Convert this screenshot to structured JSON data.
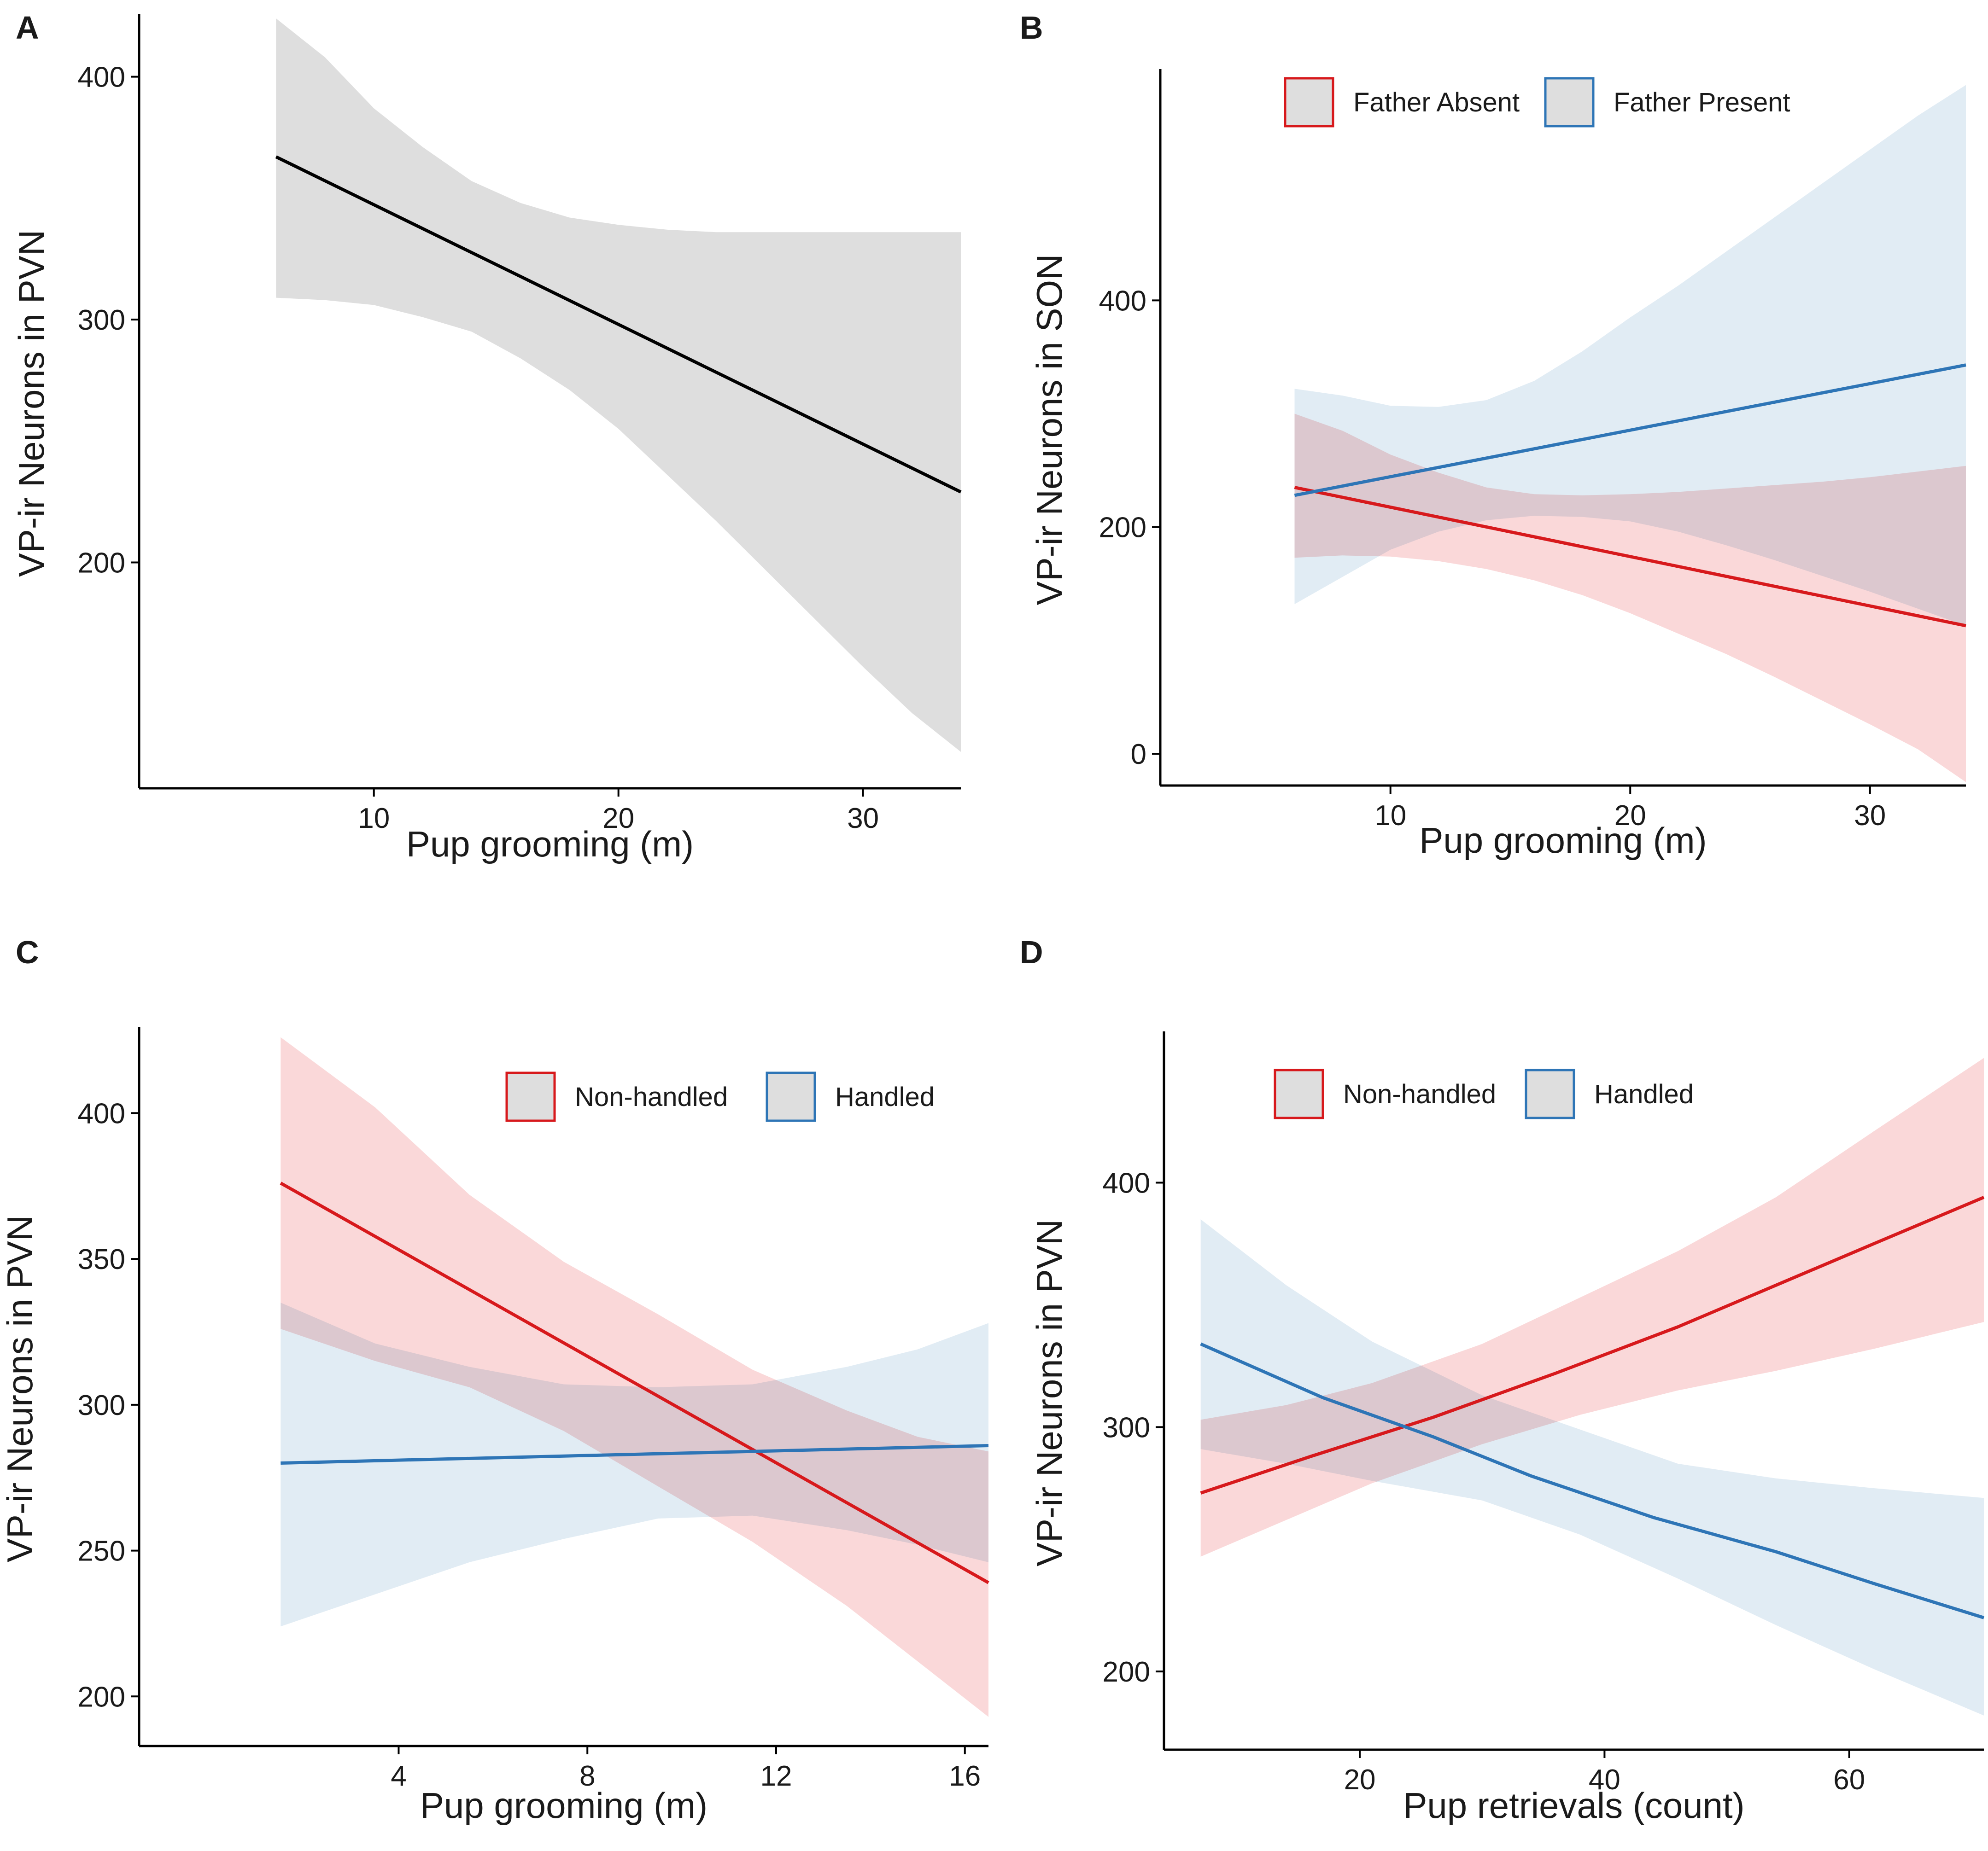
{
  "chart_data": [
    {
      "panel": "A",
      "type": "line",
      "xlabel": "Pup grooming (m)",
      "ylabel": "VP-ir Neurons in PVN",
      "xlim": [
        0.4,
        34
      ],
      "ylim": [
        107,
        424
      ],
      "xticks": [
        10,
        20,
        30
      ],
      "yticks": [
        200,
        300,
        400
      ],
      "grid": false,
      "legend": null,
      "series": [
        {
          "name": "",
          "color": "#000000",
          "fill": "#dedede",
          "line": [
            [
              6,
              367
            ],
            [
              34,
              229
            ]
          ],
          "ci_upper": [
            [
              6,
              424
            ],
            [
              8,
              408
            ],
            [
              10,
              387
            ],
            [
              12,
              371
            ],
            [
              14,
              357
            ],
            [
              16,
              348
            ],
            [
              18,
              342
            ],
            [
              20,
              339
            ],
            [
              22,
              337
            ],
            [
              24,
              336
            ],
            [
              26,
              336
            ],
            [
              28,
              336
            ],
            [
              30,
              336
            ],
            [
              32,
              336
            ],
            [
              34,
              336
            ]
          ],
          "ci_lower": [
            [
              6,
              309
            ],
            [
              8,
              308
            ],
            [
              10,
              306
            ],
            [
              12,
              301
            ],
            [
              14,
              295
            ],
            [
              16,
              284
            ],
            [
              18,
              271
            ],
            [
              20,
              255
            ],
            [
              22,
              236
            ],
            [
              24,
              217
            ],
            [
              26,
              197
            ],
            [
              28,
              177
            ],
            [
              30,
              157
            ],
            [
              32,
              138
            ],
            [
              34,
              122
            ]
          ]
        }
      ]
    },
    {
      "panel": "B",
      "type": "line",
      "xlabel": "Pup grooming (m)",
      "ylabel": "VP-ir Neurons in SON",
      "xlim": [
        0.4,
        34
      ],
      "ylim": [
        -28,
        600
      ],
      "xticks": [
        10,
        20,
        30
      ],
      "yticks": [
        0,
        200,
        400
      ],
      "grid": false,
      "legend": "top",
      "series": [
        {
          "name": "Father Absent",
          "color": "#d7191c",
          "fill": "#f8c9cb",
          "line": [
            [
              6,
              235
            ],
            [
              34,
              113
            ]
          ],
          "ci_upper": [
            [
              6,
              300
            ],
            [
              8,
              285
            ],
            [
              10,
              264
            ],
            [
              12,
              248
            ],
            [
              14,
              235
            ],
            [
              16,
              229
            ],
            [
              18,
              228
            ],
            [
              20,
              229
            ],
            [
              22,
              231
            ],
            [
              24,
              234
            ],
            [
              26,
              237
            ],
            [
              28,
              240
            ],
            [
              30,
              244
            ],
            [
              32,
              249
            ],
            [
              34,
              254
            ]
          ],
          "ci_lower": [
            [
              6,
              173
            ],
            [
              8,
              175
            ],
            [
              10,
              174
            ],
            [
              12,
              170
            ],
            [
              14,
              163
            ],
            [
              16,
              153
            ],
            [
              18,
              140
            ],
            [
              20,
              124
            ],
            [
              22,
              106
            ],
            [
              24,
              88
            ],
            [
              26,
              68
            ],
            [
              28,
              47
            ],
            [
              30,
              26
            ],
            [
              32,
              4
            ],
            [
              34,
              -25
            ]
          ]
        },
        {
          "name": "Father Present",
          "color": "#2e75b6",
          "fill": "#d6e4f0",
          "line": [
            [
              6,
              228
            ],
            [
              34,
              343
            ]
          ],
          "ci_upper": [
            [
              6,
              322
            ],
            [
              8,
              316
            ],
            [
              10,
              307
            ],
            [
              12,
              306
            ],
            [
              14,
              312
            ],
            [
              16,
              329
            ],
            [
              18,
              355
            ],
            [
              20,
              385
            ],
            [
              22,
              413
            ],
            [
              24,
              443
            ],
            [
              26,
              473
            ],
            [
              28,
              503
            ],
            [
              30,
              533
            ],
            [
              32,
              563
            ],
            [
              34,
              590
            ]
          ],
          "ci_lower": [
            [
              6,
              132
            ],
            [
              8,
              156
            ],
            [
              10,
              180
            ],
            [
              12,
              196
            ],
            [
              14,
              206
            ],
            [
              16,
              210
            ],
            [
              18,
              209
            ],
            [
              20,
              205
            ],
            [
              22,
              196
            ],
            [
              24,
              184
            ],
            [
              26,
              171
            ],
            [
              28,
              157
            ],
            [
              30,
              143
            ],
            [
              32,
              128
            ],
            [
              34,
              113
            ]
          ]
        }
      ]
    },
    {
      "panel": "C",
      "type": "line",
      "xlabel": "Pup grooming (m)",
      "ylabel": "VP-ir Neurons in PVN",
      "xlim": [
        -1.5,
        16.5
      ],
      "ylim": [
        183,
        428
      ],
      "xticks": [
        4,
        8,
        12,
        16
      ],
      "yticks": [
        200,
        250,
        300,
        350,
        400
      ],
      "grid": false,
      "legend": "top-right",
      "series": [
        {
          "name": "Non-handled",
          "color": "#d7191c",
          "fill": "#f8c9cb",
          "line": [
            [
              1.5,
              376
            ],
            [
              16.5,
              239
            ]
          ],
          "ci_upper": [
            [
              1.5,
              426
            ],
            [
              3.5,
              402
            ],
            [
              5.5,
              372
            ],
            [
              7.5,
              349
            ],
            [
              9.5,
              331
            ],
            [
              11.5,
              312
            ],
            [
              13.5,
              298
            ],
            [
              15,
              289
            ],
            [
              16.5,
              284
            ]
          ],
          "ci_lower": [
            [
              1.5,
              326
            ],
            [
              3.5,
              315
            ],
            [
              5.5,
              306
            ],
            [
              7.5,
              291
            ],
            [
              9.5,
              272
            ],
            [
              11.5,
              253
            ],
            [
              13.5,
              231
            ],
            [
              15,
              212
            ],
            [
              16.5,
              193
            ]
          ]
        },
        {
          "name": "Handled",
          "color": "#2e75b6",
          "fill": "#d6e4f0",
          "line": [
            [
              1.5,
              280
            ],
            [
              16.5,
              286
            ]
          ],
          "ci_upper": [
            [
              1.5,
              335
            ],
            [
              3.5,
              321
            ],
            [
              5.5,
              313
            ],
            [
              7.5,
              307
            ],
            [
              9.5,
              306
            ],
            [
              11.5,
              307
            ],
            [
              13.5,
              313
            ],
            [
              15,
              319
            ],
            [
              16.5,
              328
            ]
          ],
          "ci_lower": [
            [
              1.5,
              224
            ],
            [
              3.5,
              235
            ],
            [
              5.5,
              246
            ],
            [
              7.5,
              254
            ],
            [
              9.5,
              261
            ],
            [
              11.5,
              262
            ],
            [
              13.5,
              257
            ],
            [
              15,
              252
            ],
            [
              16.5,
              246
            ]
          ]
        }
      ]
    },
    {
      "panel": "D",
      "type": "line",
      "xlabel": "Pup retrievals (count)",
      "ylabel": "VP-ir Neurons in PVN",
      "xlim": [
        4,
        71
      ],
      "ylim": [
        168,
        460
      ],
      "xticks": [
        20,
        40,
        60
      ],
      "yticks": [
        200,
        300,
        400
      ],
      "grid": false,
      "legend": "top",
      "series": [
        {
          "name": "Non-handled",
          "color": "#d7191c",
          "fill": "#f8c9cb",
          "line": [
            [
              7,
              273
            ],
            [
              16,
              288
            ],
            [
              26,
              304
            ],
            [
              36,
              322
            ],
            [
              46,
              341
            ],
            [
              54,
              358
            ],
            [
              62,
              375
            ],
            [
              71,
              394
            ]
          ],
          "ci_upper": [
            [
              7,
              303
            ],
            [
              14,
              309
            ],
            [
              21,
              318
            ],
            [
              30,
              334
            ],
            [
              38,
              353
            ],
            [
              46,
              372
            ],
            [
              54,
              394
            ],
            [
              62,
              421
            ],
            [
              71,
              451
            ]
          ],
          "ci_lower": [
            [
              7,
              247
            ],
            [
              14,
              262
            ],
            [
              21,
              277
            ],
            [
              30,
              293
            ],
            [
              38,
              305
            ],
            [
              46,
              315
            ],
            [
              54,
              323
            ],
            [
              62,
              332
            ],
            [
              71,
              343
            ]
          ]
        },
        {
          "name": "Handled",
          "color": "#2e75b6",
          "fill": "#d6e4f0",
          "line": [
            [
              7,
              334
            ],
            [
              17,
              312
            ],
            [
              26,
              296
            ],
            [
              34,
              280
            ],
            [
              44,
              263
            ],
            [
              54,
              249
            ],
            [
              62,
              236
            ],
            [
              71,
              222
            ]
          ],
          "ci_upper": [
            [
              7,
              385
            ],
            [
              14,
              358
            ],
            [
              21,
              335
            ],
            [
              30,
              313
            ],
            [
              38,
              299
            ],
            [
              46,
              285
            ],
            [
              54,
              279
            ],
            [
              62,
              275
            ],
            [
              71,
              271
            ]
          ],
          "ci_lower": [
            [
              7,
              291
            ],
            [
              14,
              285
            ],
            [
              21,
              278
            ],
            [
              30,
              270
            ],
            [
              38,
              256
            ],
            [
              46,
              238
            ],
            [
              54,
              219
            ],
            [
              62,
              201
            ],
            [
              71,
              182
            ]
          ]
        }
      ]
    }
  ]
}
